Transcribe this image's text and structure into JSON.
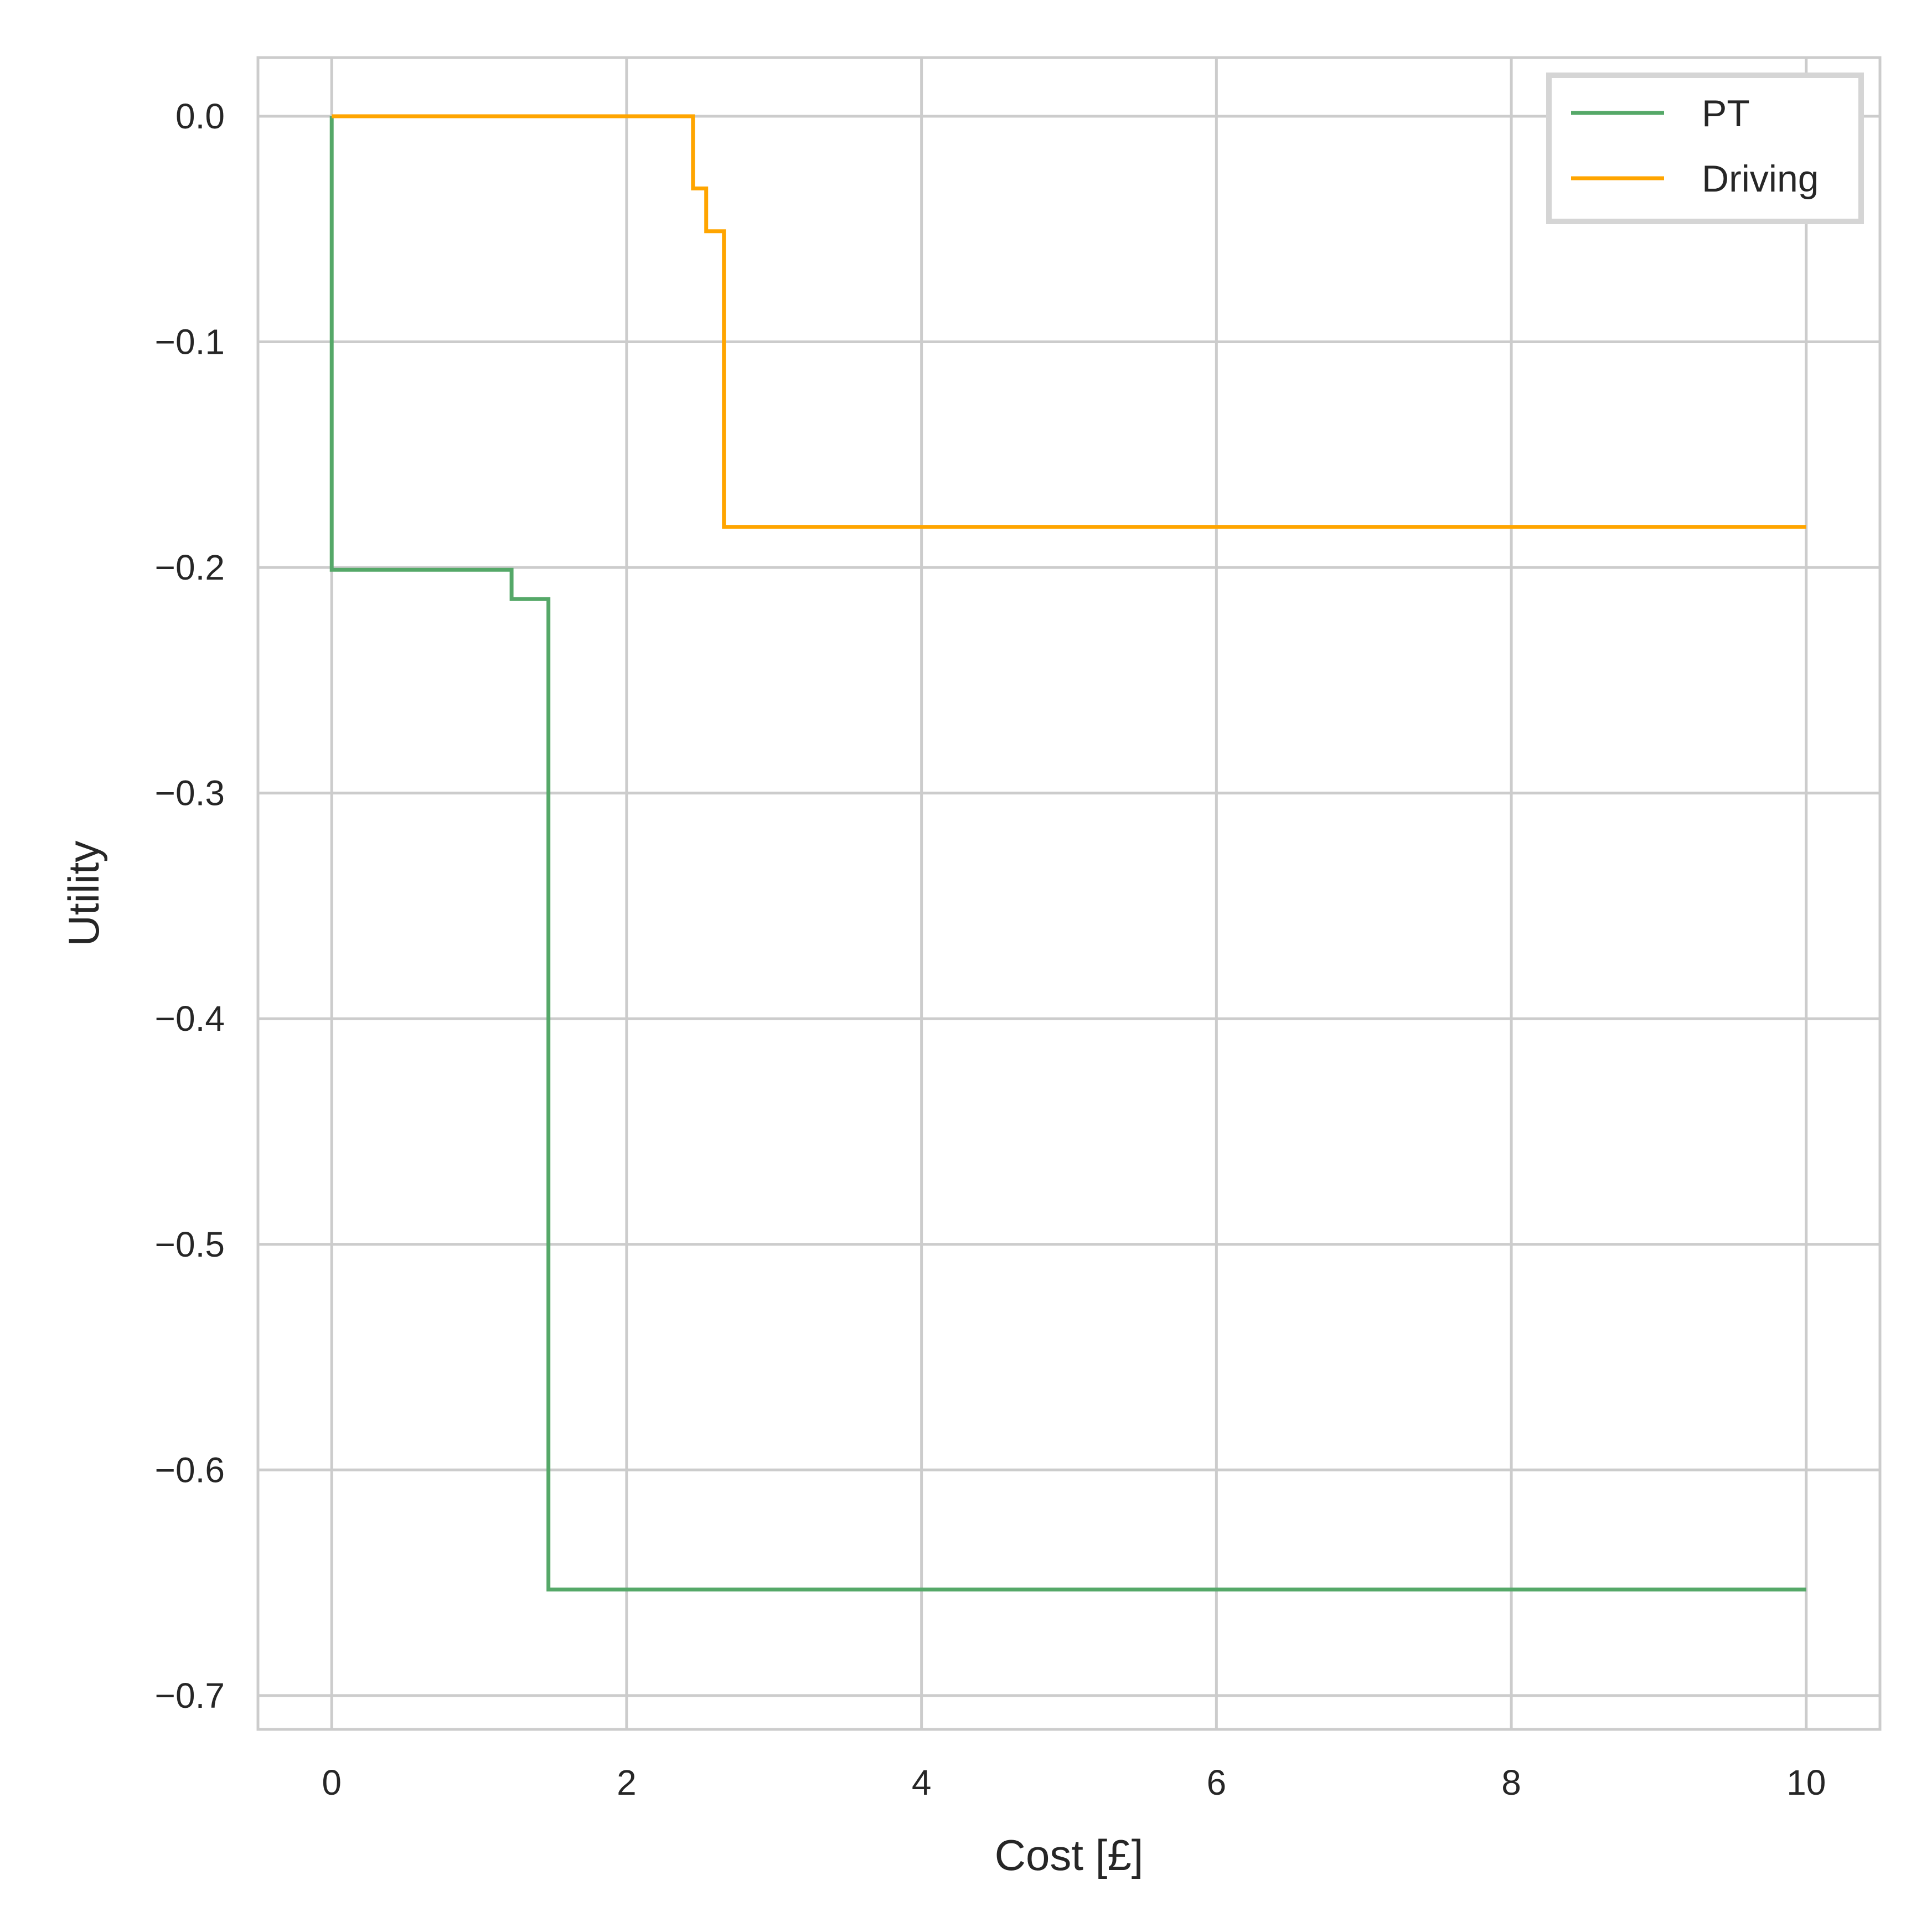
{
  "chart_data": {
    "type": "line",
    "step": true,
    "title": "",
    "xlabel": "Cost [£]",
    "ylabel": "Utility",
    "xlim": [
      -0.5,
      10.5
    ],
    "ylim": [
      -0.715,
      0.026
    ],
    "xticks": [
      0,
      2,
      4,
      6,
      8,
      10
    ],
    "xtick_labels": [
      "0",
      "2",
      "4",
      "6",
      "8",
      "10"
    ],
    "yticks": [
      0.0,
      -0.1,
      -0.2,
      -0.3,
      -0.4,
      -0.5,
      -0.6,
      -0.7
    ],
    "ytick_labels": [
      "0.0",
      "−0.1",
      "−0.2",
      "−0.3",
      "−0.4",
      "−0.5",
      "−0.6",
      "−0.7"
    ],
    "grid": true,
    "legend_position": "top-right",
    "series": [
      {
        "name": "PT",
        "color": "#55a868",
        "points": [
          [
            0,
            0.0
          ],
          [
            0,
            -0.201
          ],
          [
            1.22,
            -0.201
          ],
          [
            1.22,
            -0.214
          ],
          [
            1.47,
            -0.214
          ],
          [
            1.47,
            -0.653
          ],
          [
            10,
            -0.653
          ]
        ]
      },
      {
        "name": "Driving",
        "color": "#ffa500",
        "points": [
          [
            0,
            0.0
          ],
          [
            2.45,
            0.0
          ],
          [
            2.45,
            -0.032
          ],
          [
            2.54,
            -0.032
          ],
          [
            2.54,
            -0.051
          ],
          [
            2.66,
            -0.051
          ],
          [
            2.66,
            -0.182
          ],
          [
            10,
            -0.182
          ]
        ]
      }
    ]
  }
}
